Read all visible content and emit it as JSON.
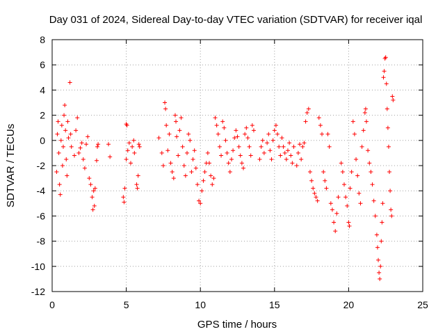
{
  "chart_data": {
    "type": "scatter",
    "title": "Day 031 of 2024, Sidereal Day-to-day VTEC variation (SDTVAR) for receiver iqal",
    "xlabel": "GPS time / hours",
    "ylabel": "SDTVAR / TECUs",
    "xlim": [
      0,
      25
    ],
    "ylim": [
      -12,
      8
    ],
    "xticks": [
      0,
      5,
      10,
      15,
      20,
      25
    ],
    "yticks": [
      -12,
      -10,
      -8,
      -6,
      -4,
      -2,
      0,
      2,
      4,
      6,
      8
    ],
    "grid": true,
    "marker": "+",
    "color": "#ff0000",
    "series": [
      {
        "name": "SDTVAR",
        "points": [
          [
            0.3,
            -2.5
          ],
          [
            0.35,
            0.5
          ],
          [
            0.4,
            1.5
          ],
          [
            0.45,
            -1.0
          ],
          [
            0.5,
            -3.5
          ],
          [
            0.55,
            -4.3
          ],
          [
            0.6,
            0.0
          ],
          [
            0.65,
            1.2
          ],
          [
            0.7,
            -2.0
          ],
          [
            0.75,
            -0.5
          ],
          [
            0.8,
            2.0
          ],
          [
            0.85,
            2.8
          ],
          [
            0.9,
            0.8
          ],
          [
            0.95,
            -1.5
          ],
          [
            1.0,
            -2.8
          ],
          [
            1.05,
            1.5
          ],
          [
            1.1,
            0.2
          ],
          [
            1.2,
            4.6
          ],
          [
            1.25,
            0.5
          ],
          [
            1.3,
            -0.5
          ],
          [
            1.5,
            -1.2
          ],
          [
            1.6,
            0.8
          ],
          [
            1.7,
            1.8
          ],
          [
            1.8,
            -1.0
          ],
          [
            1.9,
            -0.6
          ],
          [
            2.0,
            -0.2
          ],
          [
            2.1,
            -1.5
          ],
          [
            2.2,
            -2.2
          ],
          [
            2.3,
            -0.3
          ],
          [
            2.4,
            0.3
          ],
          [
            2.5,
            -3.0
          ],
          [
            2.6,
            -3.5
          ],
          [
            2.7,
            -4.5
          ],
          [
            2.75,
            -5.5
          ],
          [
            2.8,
            -4.0
          ],
          [
            2.85,
            -5.2
          ],
          [
            2.9,
            -3.8
          ],
          [
            3.0,
            -1.6
          ],
          [
            3.05,
            -0.5
          ],
          [
            3.1,
            -0.3
          ],
          [
            3.8,
            -0.3
          ],
          [
            3.9,
            -1.3
          ],
          [
            4.8,
            -4.5
          ],
          [
            4.85,
            -4.9
          ],
          [
            4.9,
            -3.8
          ],
          [
            5.0,
            -1.5
          ],
          [
            5.0,
            1.3
          ],
          [
            5.05,
            1.2
          ],
          [
            5.1,
            -0.8
          ],
          [
            5.2,
            -0.2
          ],
          [
            5.3,
            -1.8
          ],
          [
            5.4,
            -0.5
          ],
          [
            5.5,
            0.0
          ],
          [
            5.55,
            -1.0
          ],
          [
            5.7,
            -3.5
          ],
          [
            5.75,
            -3.8
          ],
          [
            5.8,
            -2.8
          ],
          [
            5.85,
            -0.3
          ],
          [
            5.9,
            -0.5
          ],
          [
            7.2,
            0.2
          ],
          [
            7.4,
            -1.0
          ],
          [
            7.5,
            -2.0
          ],
          [
            7.6,
            3.0
          ],
          [
            7.65,
            2.5
          ],
          [
            7.7,
            1.2
          ],
          [
            7.8,
            -0.8
          ],
          [
            7.9,
            0.5
          ],
          [
            8.0,
            -1.8
          ],
          [
            8.1,
            -2.5
          ],
          [
            8.2,
            -3.0
          ],
          [
            8.3,
            2.0
          ],
          [
            8.35,
            1.5
          ],
          [
            8.4,
            0.3
          ],
          [
            8.5,
            -1.2
          ],
          [
            8.6,
            0.8
          ],
          [
            8.7,
            1.8
          ],
          [
            8.8,
            -0.5
          ],
          [
            8.9,
            -2.0
          ],
          [
            9.0,
            -2.8
          ],
          [
            9.1,
            -1.0
          ],
          [
            9.2,
            0.5
          ],
          [
            9.3,
            0.0
          ],
          [
            9.4,
            -2.5
          ],
          [
            9.5,
            -1.5
          ],
          [
            9.6,
            -0.8
          ],
          [
            9.7,
            -2.2
          ],
          [
            9.8,
            -3.5
          ],
          [
            9.9,
            -4.8
          ],
          [
            10.0,
            -5.0
          ],
          [
            10.1,
            -4.0
          ],
          [
            10.2,
            -3.2
          ],
          [
            10.3,
            -2.5
          ],
          [
            10.4,
            -1.8
          ],
          [
            10.5,
            -1.0
          ],
          [
            10.6,
            -1.8
          ],
          [
            10.7,
            -2.8
          ],
          [
            10.8,
            -3.5
          ],
          [
            10.9,
            -3.0
          ],
          [
            11.0,
            1.8
          ],
          [
            11.1,
            1.2
          ],
          [
            11.2,
            0.5
          ],
          [
            11.3,
            -0.5
          ],
          [
            11.4,
            -1.2
          ],
          [
            11.5,
            1.5
          ],
          [
            11.6,
            1.0
          ],
          [
            11.7,
            0.0
          ],
          [
            11.8,
            -1.0
          ],
          [
            11.9,
            -1.8
          ],
          [
            12.0,
            -2.5
          ],
          [
            12.1,
            -1.5
          ],
          [
            12.2,
            -0.8
          ],
          [
            12.3,
            0.2
          ],
          [
            12.4,
            0.8
          ],
          [
            12.5,
            0.3
          ],
          [
            12.6,
            -0.5
          ],
          [
            12.7,
            -1.2
          ],
          [
            12.8,
            -1.8
          ],
          [
            12.9,
            -2.2
          ],
          [
            13.0,
            0.5
          ],
          [
            13.1,
            1.0
          ],
          [
            13.2,
            0.2
          ],
          [
            13.3,
            -0.5
          ],
          [
            13.4,
            -1.2
          ],
          [
            13.5,
            1.2
          ],
          [
            13.6,
            0.8
          ],
          [
            14.0,
            -1.5
          ],
          [
            14.1,
            -0.5
          ],
          [
            14.2,
            0.0
          ],
          [
            14.3,
            -1.0
          ],
          [
            14.5,
            -0.2
          ],
          [
            14.6,
            0.5
          ],
          [
            14.7,
            -0.8
          ],
          [
            14.8,
            -1.5
          ],
          [
            14.9,
            0.0
          ],
          [
            15.0,
            0.8
          ],
          [
            15.1,
            1.2
          ],
          [
            15.2,
            0.5
          ],
          [
            15.3,
            -0.5
          ],
          [
            15.4,
            -1.2
          ],
          [
            15.5,
            0.2
          ],
          [
            15.6,
            -0.5
          ],
          [
            15.7,
            -1.0
          ],
          [
            15.8,
            -1.5
          ],
          [
            15.9,
            -0.8
          ],
          [
            16.0,
            -0.2
          ],
          [
            16.1,
            -1.2
          ],
          [
            16.2,
            -1.8
          ],
          [
            16.3,
            -0.5
          ],
          [
            16.5,
            -2.0
          ],
          [
            16.6,
            -1.0
          ],
          [
            16.7,
            -0.3
          ],
          [
            16.8,
            -1.5
          ],
          [
            16.9,
            -0.5
          ],
          [
            17.0,
            -0.2
          ],
          [
            17.1,
            1.5
          ],
          [
            17.2,
            2.2
          ],
          [
            17.3,
            2.5
          ],
          [
            17.4,
            -2.5
          ],
          [
            17.5,
            -3.2
          ],
          [
            17.6,
            -3.8
          ],
          [
            17.7,
            -4.2
          ],
          [
            17.8,
            -4.5
          ],
          [
            17.9,
            -4.8
          ],
          [
            18.0,
            1.8
          ],
          [
            18.1,
            1.2
          ],
          [
            18.2,
            0.5
          ],
          [
            18.3,
            -2.5
          ],
          [
            18.4,
            -3.2
          ],
          [
            18.5,
            -3.8
          ],
          [
            18.6,
            0.5
          ],
          [
            18.7,
            -0.5
          ],
          [
            18.8,
            -5.0
          ],
          [
            18.9,
            -5.5
          ],
          [
            19.0,
            -6.5
          ],
          [
            19.1,
            -7.2
          ],
          [
            19.2,
            -5.8
          ],
          [
            19.3,
            -4.5
          ],
          [
            19.5,
            -1.8
          ],
          [
            19.6,
            -2.5
          ],
          [
            19.7,
            -3.5
          ],
          [
            19.8,
            -4.5
          ],
          [
            19.9,
            -5.2
          ],
          [
            20.0,
            -6.5
          ],
          [
            20.05,
            -6.8
          ],
          [
            20.1,
            -3.8
          ],
          [
            20.2,
            -2.5
          ],
          [
            20.3,
            1.5
          ],
          [
            20.4,
            0.5
          ],
          [
            20.5,
            -1.5
          ],
          [
            20.6,
            -2.8
          ],
          [
            20.7,
            -4.2
          ],
          [
            20.8,
            -5.0
          ],
          [
            20.9,
            -0.5
          ],
          [
            21.0,
            0.8
          ],
          [
            21.1,
            2.2
          ],
          [
            21.15,
            2.5
          ],
          [
            21.2,
            1.5
          ],
          [
            21.3,
            -0.8
          ],
          [
            21.4,
            -1.8
          ],
          [
            21.5,
            -2.5
          ],
          [
            21.6,
            -3.5
          ],
          [
            21.7,
            -4.8
          ],
          [
            21.8,
            -6.0
          ],
          [
            21.9,
            -7.5
          ],
          [
            21.95,
            -8.5
          ],
          [
            22.0,
            -9.5
          ],
          [
            22.05,
            -10.5
          ],
          [
            22.1,
            -11.0
          ],
          [
            22.15,
            -10.0
          ],
          [
            22.2,
            -8.0
          ],
          [
            22.25,
            -6.5
          ],
          [
            22.3,
            -5.0
          ],
          [
            22.35,
            5.0
          ],
          [
            22.4,
            5.5
          ],
          [
            22.45,
            6.5
          ],
          [
            22.5,
            6.6
          ],
          [
            22.55,
            4.5
          ],
          [
            22.6,
            2.5
          ],
          [
            22.65,
            1.0
          ],
          [
            22.7,
            -0.5
          ],
          [
            22.75,
            -2.5
          ],
          [
            22.8,
            -4.0
          ],
          [
            22.85,
            -5.5
          ],
          [
            22.9,
            -6.0
          ],
          [
            22.95,
            3.5
          ],
          [
            23.0,
            3.2
          ]
        ]
      }
    ]
  }
}
